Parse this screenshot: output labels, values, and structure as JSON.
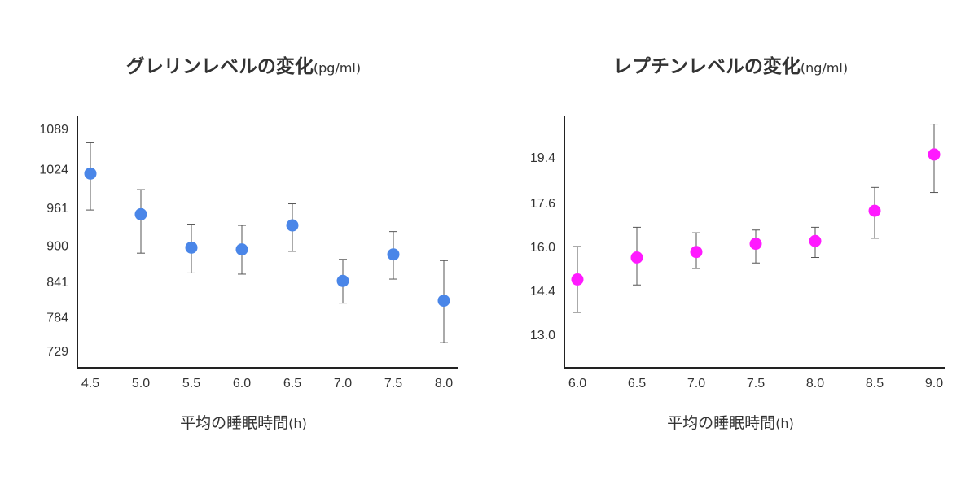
{
  "chart_data": [
    {
      "type": "scatter",
      "title": "グレリンレベルの変化",
      "title_unit": "(pg/ml)",
      "xlabel": "平均の睡眠時間",
      "xlabel_unit": "(h)",
      "ylabel": "",
      "x": [
        4.5,
        5.0,
        5.5,
        6.0,
        6.5,
        7.0,
        7.5,
        8.0
      ],
      "x_ticks": [
        "4.5",
        "5.0",
        "5.5",
        "6.0",
        "6.5",
        "7.0",
        "7.5",
        "8.0"
      ],
      "y_ticks": [
        729,
        784,
        841,
        900,
        961,
        1024,
        1089
      ],
      "y_tick_labels": [
        "729",
        "784",
        "841",
        "900",
        "961",
        "1024",
        "1089"
      ],
      "ylim": [
        700,
        1110
      ],
      "series": [
        {
          "values": [
            1016,
            950,
            896,
            893,
            932,
            842,
            885,
            810
          ],
          "err_low": [
            957,
            887,
            855,
            853,
            890,
            806,
            845,
            742
          ],
          "err_high": [
            1066,
            990,
            934,
            932,
            967,
            877,
            922,
            875
          ],
          "color": "#4a86e8"
        }
      ],
      "grid": false
    },
    {
      "type": "scatter",
      "title": "レプチンレベルの変化",
      "title_unit": "(ng/ml)",
      "xlabel": "平均の睡眠時間",
      "xlabel_unit": "(h)",
      "ylabel": "",
      "x": [
        6.0,
        6.5,
        7.0,
        7.5,
        8.0,
        8.5,
        9.0
      ],
      "x_ticks": [
        "6.0",
        "6.5",
        "7.0",
        "7.5",
        "8.0",
        "8.5",
        "9.0"
      ],
      "y_ticks": [
        13.0,
        14.4,
        16.0,
        17.6,
        19.4
      ],
      "y_tick_labels": [
        "13.0",
        "14.4",
        "16.0",
        "17.6",
        "19.4"
      ],
      "ylim": [
        11.8,
        21.0
      ],
      "series": [
        {
          "values": [
            14.8,
            15.6,
            15.8,
            16.1,
            16.2,
            17.3,
            19.5
          ],
          "err_low": [
            13.7,
            14.6,
            15.2,
            15.4,
            15.6,
            16.3,
            18.0
          ],
          "err_high": [
            16.0,
            16.7,
            16.5,
            16.6,
            16.7,
            18.2,
            20.7
          ],
          "color": "#ff1aff"
        }
      ],
      "grid": false
    }
  ]
}
